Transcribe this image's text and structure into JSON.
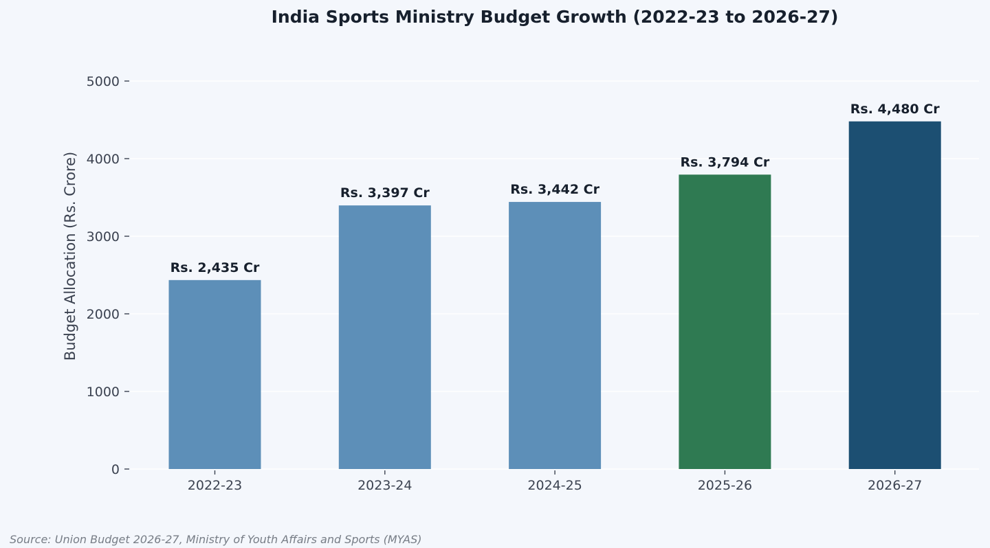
{
  "chart_data": {
    "type": "bar",
    "title": "India Sports Ministry Budget Growth (2022-23 to 2026-27)",
    "xlabel": "",
    "ylabel": "Budget Allocation (Rs. Crore)",
    "categories": [
      "2022-23",
      "2023-24",
      "2024-25",
      "2025-26",
      "2026-27"
    ],
    "values": [
      2435,
      3397,
      3442,
      3794,
      4480
    ],
    "value_labels": [
      "Rs. 2,435 Cr",
      "Rs. 3,397 Cr",
      "Rs. 3,442 Cr",
      "Rs. 3,794 Cr",
      "Rs. 4,480 Cr"
    ],
    "bar_colors": [
      "#5d8fb8",
      "#5d8fb8",
      "#5d8fb8",
      "#2f7a52",
      "#1c4f72"
    ],
    "ylim": [
      0,
      5000
    ],
    "yticks": [
      0,
      1000,
      2000,
      3000,
      4000,
      5000
    ],
    "ytick_labels": [
      "0",
      "1000",
      "2000",
      "3000",
      "4000",
      "5000"
    ],
    "grid": true,
    "legend": "none"
  },
  "source_note": "Source: Union Budget 2026-27, Ministry of Youth Affairs and Sports (MYAS)"
}
